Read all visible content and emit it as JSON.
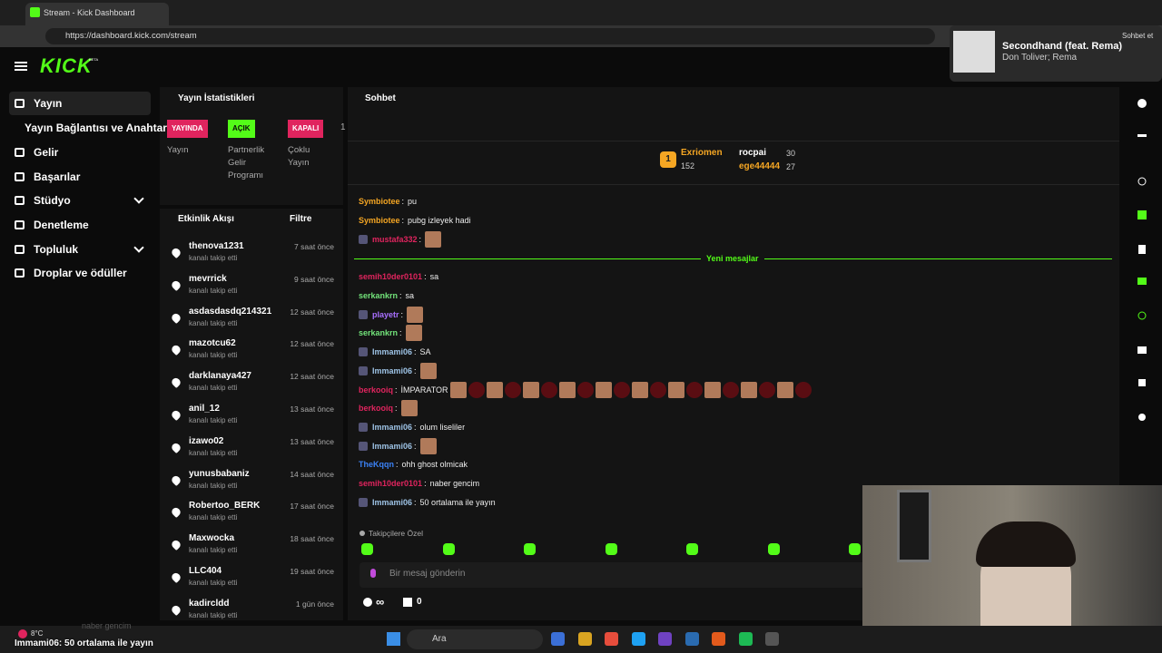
{
  "browser": {
    "tab_title": "Stream - Kick Dashboard",
    "url": "https://dashboard.kick.com/stream"
  },
  "media": {
    "title": "Secondhand (feat. Rema)",
    "artist": "Don Toliver; Rema",
    "chat_button": "Sohbet et"
  },
  "header": {
    "logo": "KICK",
    "beta": "BETA"
  },
  "sidebar": {
    "items": [
      "Yayın",
      "Yayın Bağlantısı ve Anahtarı",
      "Gelir",
      "Başarılar",
      "Stüdyo",
      "Denetleme",
      "Topluluk",
      "Droplar ve ödüller"
    ]
  },
  "stats": {
    "title": "Yayın İstatistikleri",
    "items": [
      {
        "badge": "YAYINDA",
        "label": "Yayın"
      },
      {
        "badge": "AÇIK",
        "label": "Partnerlik Gelir Programı"
      },
      {
        "badge": "KAPALI",
        "label": "Çoklu Yayın"
      }
    ],
    "more": "1"
  },
  "activity": {
    "title": "Etkinlik Akışı",
    "filter": "Filtre",
    "items": [
      {
        "name": "thenova1231",
        "action": "kanalı takip etti",
        "time": "7 saat önce"
      },
      {
        "name": "mevrrick",
        "action": "kanalı takip etti",
        "time": "9 saat önce"
      },
      {
        "name": "asdasdasdq214321",
        "action": "kanalı takip etti",
        "time": "12 saat önce"
      },
      {
        "name": "mazotcu62",
        "action": "kanalı takip etti",
        "time": "12 saat önce"
      },
      {
        "name": "darklanaya427",
        "action": "kanalı takip etti",
        "time": "12 saat önce"
      },
      {
        "name": "anil_12",
        "action": "kanalı takip etti",
        "time": "13 saat önce"
      },
      {
        "name": "izawo02",
        "action": "kanalı takip etti",
        "time": "13 saat önce"
      },
      {
        "name": "yunusbabaniz",
        "action": "kanalı takip etti",
        "time": "14 saat önce"
      },
      {
        "name": "Robertoo_BERK",
        "action": "kanalı takip etti",
        "time": "17 saat önce"
      },
      {
        "name": "Maxwocka",
        "action": "kanalı takip etti",
        "time": "18 saat önce"
      },
      {
        "name": "LLC404",
        "action": "kanalı takip etti",
        "time": "19 saat önce"
      },
      {
        "name": "kadircldd",
        "action": "kanalı takip etti",
        "time": "1 gün önce"
      }
    ]
  },
  "chat": {
    "title": "Sohbet",
    "separator": ":",
    "leaderboard": [
      {
        "rank": "1",
        "name": "Exriomen",
        "points": "152"
      },
      {
        "name": "rocpai",
        "points": "30"
      },
      {
        "name": "ege44444",
        "points": "27"
      }
    ],
    "divider": "Yeni mesajlar",
    "messages": [
      {
        "user": "Symbiotee",
        "color": "#f5a623",
        "text": "pu"
      },
      {
        "user": "Symbiotee",
        "color": "#f5a623",
        "text": "pubg izleyek hadi"
      },
      {
        "user": "mustafa332",
        "color": "#e0245e",
        "text": ""
      },
      {
        "user": "semih10der0101",
        "color": "#e0245e",
        "text": "sa"
      },
      {
        "user": "serkankrn",
        "color": "#72e37a",
        "text": "sa"
      },
      {
        "user": "playetr",
        "color": "#a970ff",
        "text": ""
      },
      {
        "user": "serkankrn",
        "color": "#72e37a",
        "text": ""
      },
      {
        "user": "Immami06",
        "color": "#9ec3e6",
        "text": "SA"
      },
      {
        "user": "Immami06",
        "color": "#9ec3e6",
        "text": ""
      },
      {
        "user": "berkooiq",
        "color": "#e0245e",
        "text": "İMPARATOR"
      },
      {
        "user": "berkooiq",
        "color": "#e0245e",
        "text": ""
      },
      {
        "user": "Immami06",
        "color": "#9ec3e6",
        "text": "olum liseliler"
      },
      {
        "user": "Immami06",
        "color": "#9ec3e6",
        "text": ""
      },
      {
        "user": "TheKqqn",
        "color": "#3b82f6",
        "text": "ohh ghost olmicak"
      },
      {
        "user": "semih10der0101",
        "color": "#e0245e",
        "text": "naber gencim"
      },
      {
        "user": "Immami06",
        "color": "#9ec3e6",
        "text": "50 ortalama ile yayın"
      }
    ],
    "followers_only": "Takipçilere Özel",
    "input_placeholder": "Bir mesaj gönderin",
    "footer": {
      "infinite": "∞",
      "count": "0"
    }
  },
  "taskbar": {
    "weather": "8°C",
    "search": "Ara",
    "overlay_previous": "naber gencim",
    "overlay_current": "Immami06: 50 ortalama ile yayın"
  }
}
